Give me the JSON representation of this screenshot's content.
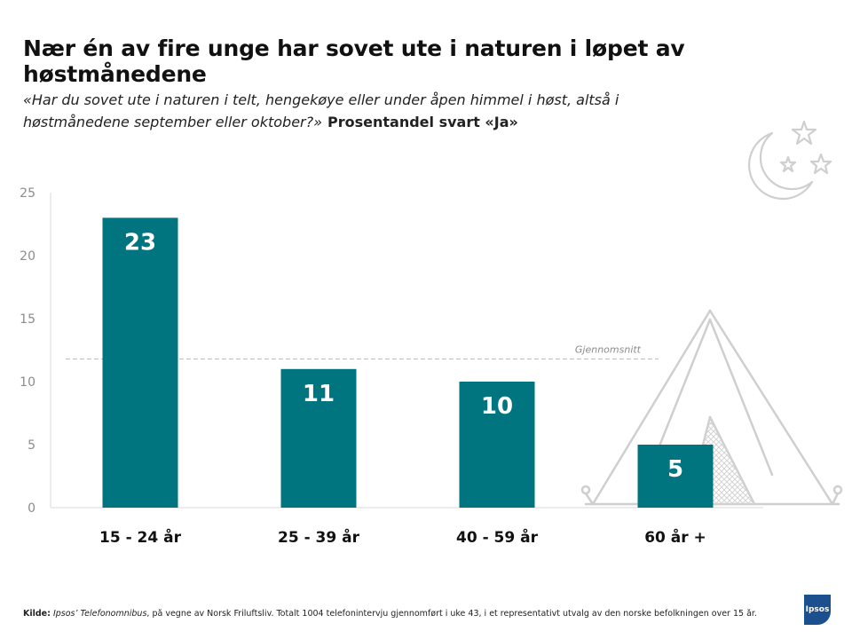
{
  "title": "Nær én av fire unge har sovet ute i naturen i løpet av høstmånedene",
  "subtitle": {
    "question": "«Har du sovet ute i naturen i telt, hengekøye eller under åpen himmel i høst, altså i høstmånedene september eller oktober?»",
    "measure": "Prosentandel svart «Ja»"
  },
  "chart_data": {
    "type": "bar",
    "categories": [
      "15 - 24 år",
      "25 - 39 år",
      "40 - 59 år",
      "60 år +"
    ],
    "values": [
      23,
      11,
      10,
      5
    ],
    "data_labels": [
      "23",
      "11",
      "10",
      "5"
    ],
    "ylim": [
      0,
      25
    ],
    "yticks": [
      "0",
      "5",
      "10",
      "15",
      "20",
      "25"
    ],
    "ytick_values": [
      0,
      5,
      10,
      15,
      20,
      25
    ],
    "reference_line": {
      "label": "Gjennomsnitt",
      "value": 11.8
    },
    "bar_color": "#00757f",
    "label_color": "#ffffff",
    "grid": false
  },
  "source": {
    "key": "Kilde:",
    "emph": "Ipsos’ Telefonomnibus",
    "text": ", på vegne av Norsk Friluftsliv. Totalt 1004 telefonintervju gjennomført i uke 43, i et representativt utvalg av den norske befolkningen over 15 år."
  },
  "logo": {
    "text": "Ipsos",
    "color": "#1c4f8e"
  },
  "decor": {
    "moon_stars": "moon-stars-icon",
    "tent": "tent-icon"
  }
}
